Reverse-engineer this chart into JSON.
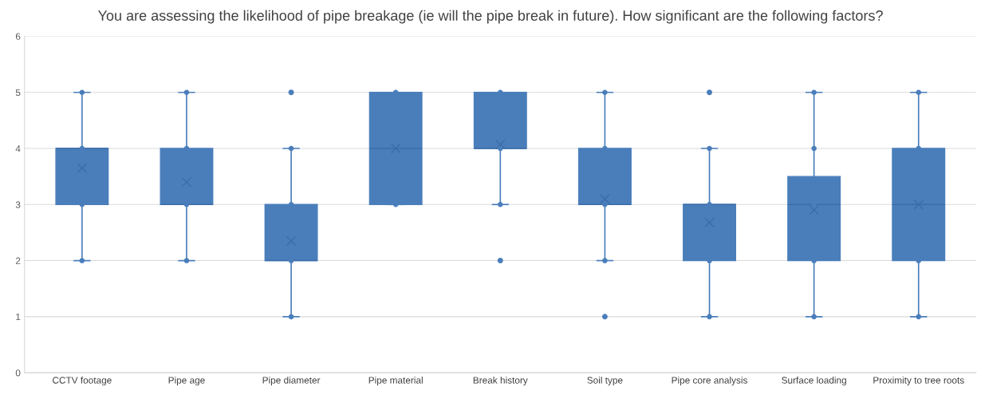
{
  "chart_data": {
    "type": "box",
    "title": "You are assessing the likelihood of pipe breakage (ie will the pipe break in future). How significant are the following factors?",
    "categories": [
      "CCTV footage",
      "Pipe age",
      "Pipe diameter",
      "Pipe material",
      "Break history",
      "Soil type",
      "Pipe core analysis",
      "Surface loading",
      "Proximity to tree roots"
    ],
    "color": "#4a7ebb",
    "boxes": [
      {
        "low": 2,
        "q1": 3,
        "median": 4,
        "q3": 4,
        "high": 5,
        "mean": 3.65
      },
      {
        "low": 2,
        "q1": 3,
        "median": 3,
        "q3": 4,
        "high": 5,
        "mean": 3.4
      },
      {
        "low": 1,
        "q1": 2,
        "median": 2,
        "q3": 3,
        "high": 4,
        "mean": 2.35,
        "outliers": [
          5
        ]
      },
      {
        "low": 3,
        "q1": 3,
        "median": 4,
        "q3": 5,
        "high": 5,
        "mean": 4
      },
      {
        "low": 3,
        "q1": 4,
        "median": 4,
        "q3": 5,
        "high": 5,
        "mean": 4.07,
        "outliers": [
          2
        ]
      },
      {
        "low": 2,
        "q1": 3,
        "median": 3,
        "q3": 4,
        "high": 5,
        "mean": 3.1,
        "outliers": [
          1
        ]
      },
      {
        "low": 1,
        "q1": 2,
        "median": 3,
        "q3": 3,
        "high": 4,
        "mean": 2.68,
        "outliers": [
          5
        ]
      },
      {
        "low": 1,
        "q1": 2,
        "median": 3,
        "q3": 3.5,
        "high": 5,
        "mean": 2.9
      },
      {
        "low": 1,
        "q1": 2,
        "median": 3,
        "q3": 4,
        "high": 5,
        "mean": 3
      }
    ],
    "series": [
      {
        "type": "scatter",
        "color": "#4a7ebb",
        "x": [
          "CCTV footage",
          "CCTV footage",
          "CCTV footage",
          "CCTV footage",
          "Pipe age",
          "Pipe age",
          "Pipe age",
          "Pipe age",
          "Pipe diameter",
          "Pipe diameter",
          "Pipe diameter",
          "Pipe diameter",
          "Pipe material",
          "Pipe material",
          "Break history",
          "Break history",
          "Break history",
          "Soil type",
          "Soil type",
          "Soil type",
          "Soil type",
          "Pipe core analysis",
          "Pipe core analysis",
          "Pipe core analysis",
          "Pipe core analysis",
          "Surface loading",
          "Surface loading",
          "Surface loading",
          "Surface loading",
          "Surface loading",
          "Proximity to tree roots",
          "Proximity to tree roots",
          "Proximity to tree roots",
          "Proximity to tree roots"
        ],
        "values": [
          2,
          3,
          4,
          5,
          2,
          3,
          4,
          5,
          1,
          2,
          3,
          4,
          3,
          5,
          3,
          4,
          5,
          2,
          3,
          4,
          5,
          1,
          2,
          3,
          4,
          1,
          2,
          3,
          4,
          5,
          1,
          2,
          4,
          5
        ]
      }
    ],
    "ylim": [
      0,
      6
    ],
    "yticks": [
      0,
      1,
      2,
      3,
      4,
      5,
      6
    ],
    "grid": "y",
    "tick_labels": "xy"
  }
}
